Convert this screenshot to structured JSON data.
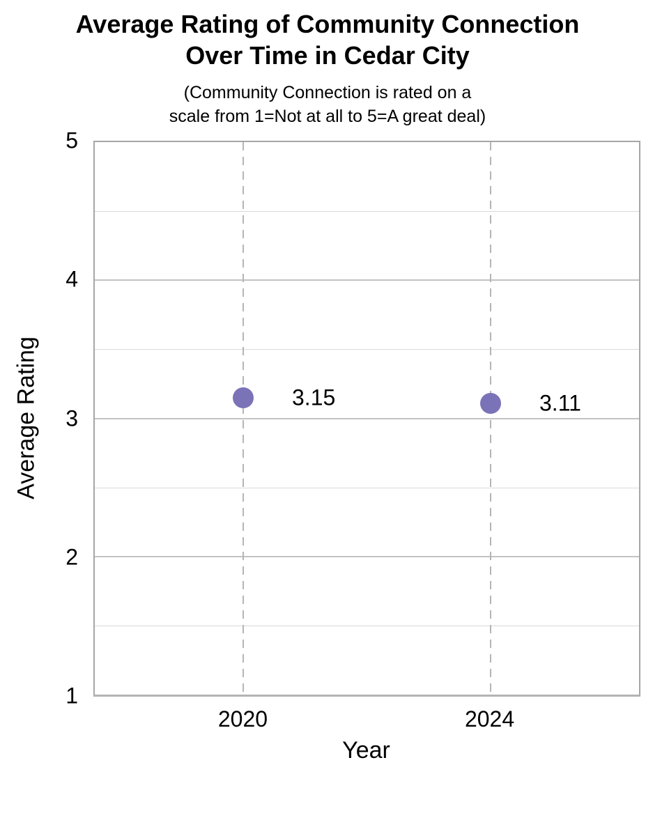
{
  "chart_data": {
    "type": "scatter",
    "title": "Average Rating of Community Connection\nOver Time in Cedar City",
    "subtitle": "(Community Connection is rated on a\nscale from 1=Not at all to 5=A great deal)",
    "xlabel": "Year",
    "ylabel": "Average Rating",
    "x": [
      2020,
      2024
    ],
    "y": [
      3.15,
      3.11
    ],
    "point_labels": [
      "3.15",
      "3.11"
    ],
    "xticks": [
      2020,
      2024
    ],
    "xtick_labels": [
      "2020",
      "2024"
    ],
    "yticks": [
      1,
      2,
      3,
      4,
      5
    ],
    "ytick_labels": [
      "1",
      "2",
      "3",
      "4",
      "5"
    ],
    "xlim": [
      2017.6,
      2026.4
    ],
    "ylim": [
      1,
      5
    ],
    "grid_step": 0.5,
    "grid": "horizontal solid every 0.5; vertical dashed at x ticks",
    "legend": "none",
    "colors": {
      "marker": "#7a73b8",
      "grid_minor": "#d9d9d9",
      "grid_major": "#c2c2c2",
      "dashed_line": "#b5b5b5",
      "plot_border": "#a6a6a6",
      "bottom_axis": "#b3b3b3",
      "text": "#000000"
    }
  }
}
